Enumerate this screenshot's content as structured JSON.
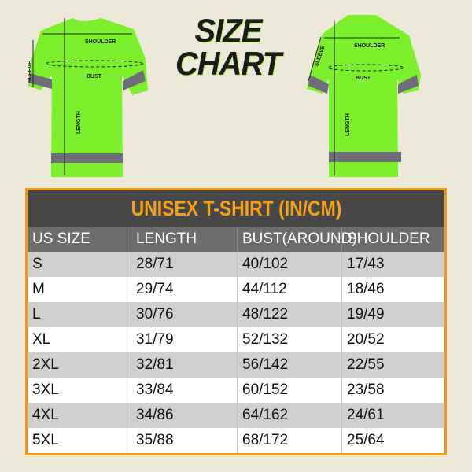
{
  "title": {
    "line1": "SIZE",
    "line2": "CHART"
  },
  "front_shirt": {
    "shoulder": "SHOULDER",
    "bust": "BUST",
    "sleeve": "SLEEVE",
    "length": "LENGTH"
  },
  "back_shirt": {
    "shoulder": "SHOULDER",
    "bust": "BUST",
    "sleeve": "SLEEVE",
    "length": "LENGTH"
  },
  "colors": {
    "shirt": "#7cf02c",
    "band": "#6e6e78",
    "accent": "#f39a12",
    "header_bg": "#474747"
  },
  "table": {
    "title": "UNISEX T-SHIRT (IN/CM)",
    "headers": [
      "US SIZE",
      "LENGTH",
      "BUST(AROUND)",
      "SHOULDER"
    ],
    "rows": [
      [
        "S",
        "28/71",
        "40/102",
        "17/43"
      ],
      [
        "M",
        "29/74",
        "44/112",
        "18/46"
      ],
      [
        "L",
        "30/76",
        "48/122",
        "19/49"
      ],
      [
        "XL",
        "31/79",
        "52/132",
        "20/52"
      ],
      [
        "2XL",
        "32/81",
        "56/142",
        "22/55"
      ],
      [
        "3XL",
        "33/84",
        "60/152",
        "23/58"
      ],
      [
        "4XL",
        "34/86",
        "64/162",
        "24/61"
      ],
      [
        "5XL",
        "35/88",
        "68/172",
        "25/64"
      ]
    ]
  }
}
